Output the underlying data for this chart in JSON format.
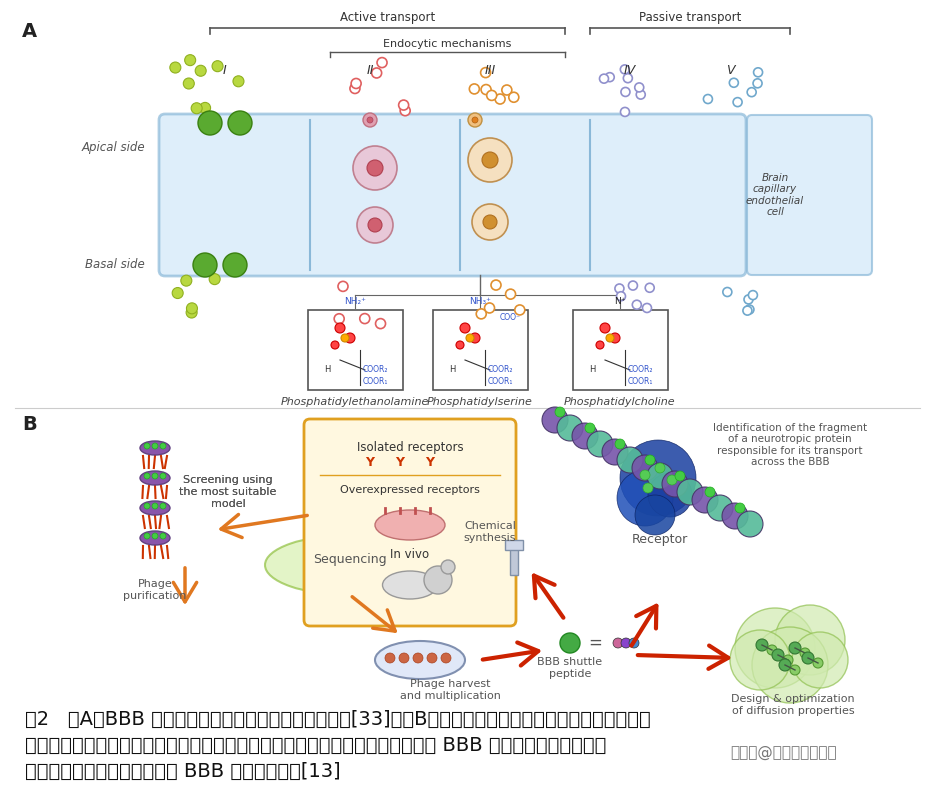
{
  "figure_width": 9.37,
  "figure_height": 7.86,
  "dpi": 100,
  "background_color": "#ffffff",
  "caption_lines": [
    "图2   （A）BBB 转运的两种方式：主动运输和被动运输[33]；（B）多肽的主要设计筛选方法，包括由噬菌体",
    "展示肽库中筛选、鉴定；由天然神经蛋白质结构中鉴定，再通过化学合成筛选其 BBB 穿透能力，根据已有的",
    "结构特征和物理化学性质设计 BBB 被动运输多肽[13]"
  ],
  "caption_fontsize": 14,
  "active_transport_text": "Active transport",
  "passive_transport_text": "Passive transport",
  "endocytic_text": "Endocytic mechanisms",
  "roman_labels": [
    "I",
    "II",
    "III",
    "IV",
    "V"
  ],
  "apical_text": "Apical side",
  "basal_text": "Basal side",
  "brain_cell_text": "Brain\ncapillary\nendothelial\ncell",
  "phospho_labels": [
    "Phosphatidylethanolamine",
    "Phosphatidylserine",
    "Phosphatidylcholine"
  ],
  "isolated_receptors": "Isolated receptors",
  "overexpressed_receptors": "Overexpressed receptors",
  "in_vivo_text": "In vivo",
  "sequencing_text": "Sequencing",
  "screening_text": "Screening using\nthe most suitable\nmodel",
  "phage_purif_text": "Phage\npurification",
  "phage_harvest_text": "Phage harvest\nand multiplication",
  "bbb_shuttle_text": "BBB shuttle\npeptide",
  "chemical_synth_text": "Chemical\nsynthesis",
  "receptor_text": "Receptor",
  "design_opt_text": "Design & optimization\nof diffusion properties",
  "identification_text": "Identification of the fragment\nof a neurotropic protein\nresponsible for its transport\nacross the BBB",
  "watermark_text": "搜狐号@多肽研究员一枚",
  "cell_color": "#d0e8f8",
  "cell_border_color": "#8ab8d8",
  "text_color": "#222222"
}
